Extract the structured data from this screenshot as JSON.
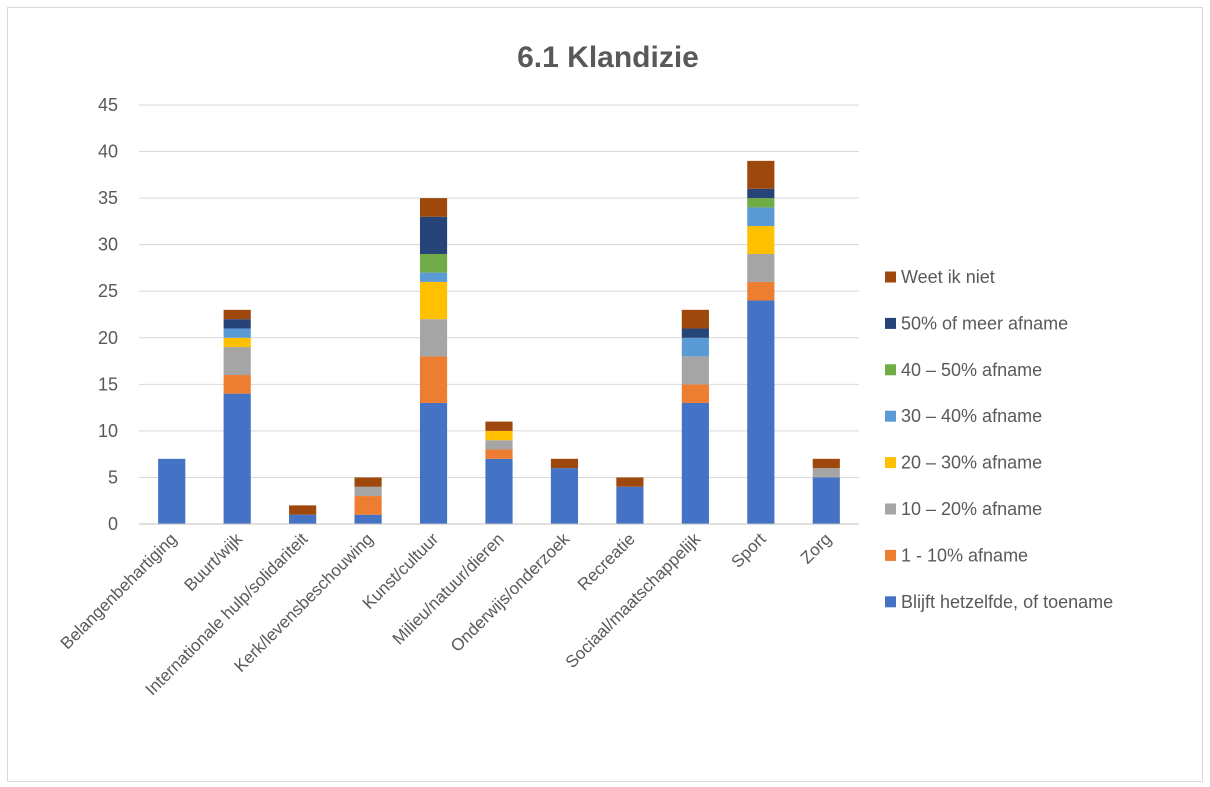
{
  "chart_data": {
    "type": "bar",
    "stacked": true,
    "title": "6.1 Klandizie",
    "xlabel": "",
    "ylabel": "",
    "ylim": [
      0,
      45
    ],
    "yticks": [
      0,
      5,
      10,
      15,
      20,
      25,
      30,
      35,
      40,
      45
    ],
    "grid": true,
    "legend_position": "right",
    "categories": [
      "Belangenbehartiging",
      "Buurt/wijk",
      "Internationale hulp/solidariteit",
      "Kerk/levensbeschouwing",
      "Kunst/cultuur",
      "Milieu/natuur/dieren",
      "Onderwijs/onderzoek",
      "Recreatie",
      "Sociaal/maatschappelijk",
      "Sport",
      "Zorg"
    ],
    "series": [
      {
        "name": "Blijft hetzelfde, of toename",
        "color": "#4472c4",
        "values": [
          7,
          14,
          1,
          1,
          13,
          7,
          6,
          4,
          13,
          24,
          5
        ]
      },
      {
        "name": "1 - 10% afname",
        "color": "#ed7d31",
        "values": [
          0,
          2,
          0,
          2,
          5,
          1,
          0,
          0,
          2,
          2,
          0
        ]
      },
      {
        "name": "10 – 20% afname",
        "color": "#a5a5a5",
        "values": [
          0,
          3,
          0,
          1,
          4,
          1,
          0,
          0,
          3,
          3,
          1
        ]
      },
      {
        "name": "20 – 30% afname",
        "color": "#ffc000",
        "values": [
          0,
          1,
          0,
          0,
          4,
          1,
          0,
          0,
          0,
          3,
          0
        ]
      },
      {
        "name": "30 – 40% afname",
        "color": "#5b9bd5",
        "values": [
          0,
          1,
          0,
          0,
          1,
          0,
          0,
          0,
          2,
          2,
          0
        ]
      },
      {
        "name": "40 – 50% afname",
        "color": "#70ad47",
        "values": [
          0,
          0,
          0,
          0,
          2,
          0,
          0,
          0,
          0,
          1,
          0
        ]
      },
      {
        "name": "50% of meer afname",
        "color": "#264478",
        "values": [
          0,
          1,
          0,
          0,
          4,
          0,
          0,
          0,
          1,
          1,
          0
        ]
      },
      {
        "name": "Weet ik niet",
        "color": "#9e480e",
        "values": [
          0,
          1,
          1,
          1,
          2,
          1,
          1,
          1,
          2,
          3,
          1
        ]
      }
    ]
  }
}
